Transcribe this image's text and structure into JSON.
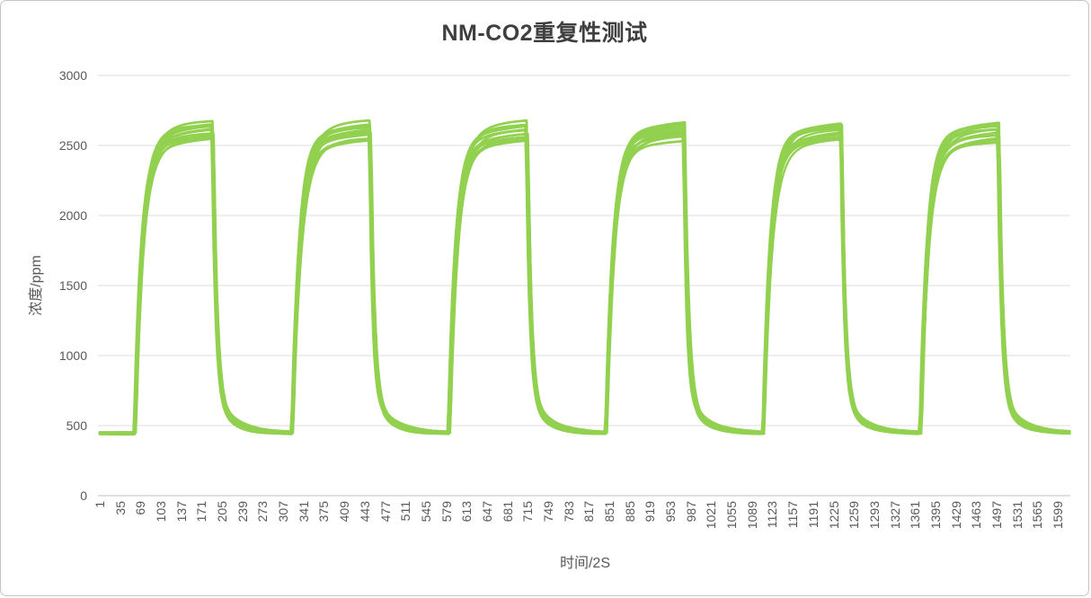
{
  "chart_data": {
    "type": "line",
    "title": "NM-CO2重复性测试",
    "xlabel": "时间/2S",
    "ylabel": "浓度/ppm",
    "y_ticks": [
      0,
      500,
      1000,
      1500,
      2000,
      2500,
      3000
    ],
    "x_ticks": [
      1,
      35,
      69,
      103,
      137,
      171,
      205,
      239,
      273,
      307,
      341,
      375,
      409,
      443,
      477,
      511,
      545,
      579,
      613,
      647,
      681,
      715,
      749,
      783,
      817,
      851,
      885,
      919,
      953,
      987,
      1021,
      1055,
      1089,
      1123,
      1157,
      1191,
      1225,
      1259,
      1293,
      1327,
      1361,
      1395,
      1429,
      1463,
      1497,
      1531,
      1565,
      1599
    ],
    "ylim": [
      0,
      3000
    ],
    "xlim": [
      1,
      1620
    ],
    "legend": "none",
    "grid": "horizontal",
    "series_color": "#92D050",
    "grid_color": "#DEDEDE",
    "axis_line_color": "#BFBFBF",
    "label_color": "#595959",
    "title_color": "#3F3F3F",
    "num_overlaid_series": 13,
    "waveform": {
      "description": "Repeatability test: multiple overlaid CO2 sensor traces cycling between baseline and high concentration, 6 on/off gas cycles",
      "baseline_ppm": 445,
      "plateau_ppm_range": [
        2552,
        2685
      ],
      "num_cycles": 6,
      "cycle_period_samples": 262,
      "on_duration_samples": 130,
      "first_rise_sample": 60,
      "rise_tau": 12,
      "creep_tau": 55,
      "fall_tau_fast": 5.5,
      "fall_tau_slow": 28,
      "cycles": [
        {
          "rise_at": 60,
          "fall_at": 190
        },
        {
          "rise_at": 322,
          "fall_at": 452
        },
        {
          "rise_at": 584,
          "fall_at": 714
        },
        {
          "rise_at": 846,
          "fall_at": 976
        },
        {
          "rise_at": 1108,
          "fall_at": 1238
        },
        {
          "rise_at": 1370,
          "fall_at": 1500
        }
      ]
    }
  }
}
